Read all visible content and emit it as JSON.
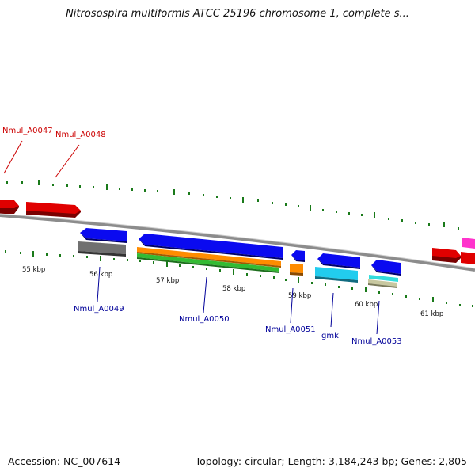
{
  "title": "Nitrosospira multiformis ATCC 25196 chromosome 1, complete s...",
  "footer": {
    "accession": "Accession: NC_007614",
    "summary": "Topology: circular; Length: 3,184,243 bp; Genes: 2,805"
  },
  "colors": {
    "top_gene": "#e00000",
    "bottom_gene": "#0000cc",
    "tick": "#1a7a1a",
    "backbone": "#8c8c8c",
    "cds": "#0a0af0",
    "rrna_like_grey": "#707070",
    "orange": "#ff8c00",
    "green": "#33bb33",
    "cyan": "#22ccee",
    "teal": "#33dddd",
    "tan": "#c8c8a0",
    "pink": "#ff33cc"
  },
  "kbp_labels": [
    "55 kbp",
    "56 kbp",
    "57 kbp",
    "58 kbp",
    "59 kbp",
    "60 kbp",
    "61 kbp"
  ],
  "top_gene_labels": [
    "Nmul_A0047",
    "Nmul_A0048"
  ],
  "bottom_gene_labels": [
    "Nmul_A0049",
    "Nmul_A0050",
    "Nmul_A0051",
    "gmk",
    "Nmul_A0053"
  ]
}
